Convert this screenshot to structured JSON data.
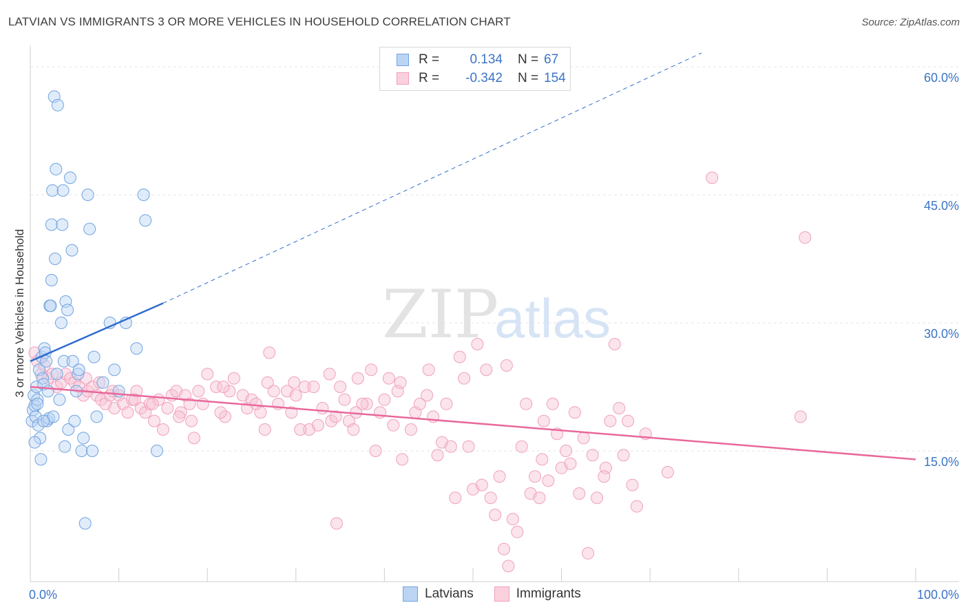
{
  "title": "LATVIAN VS IMMIGRANTS 3 OR MORE VEHICLES IN HOUSEHOLD CORRELATION CHART",
  "source": "Source: ZipAtlas.com",
  "watermark": {
    "zip": "ZIP",
    "atlas": "atlas"
  },
  "legend_box": {
    "rows": [
      {
        "r_label": "R =",
        "r_value": "0.134",
        "n_label": "N =",
        "n_value": "67"
      },
      {
        "r_label": "R =",
        "r_value": "-0.342",
        "n_label": "N =",
        "n_value": "154"
      }
    ]
  },
  "bottom_legend": {
    "items": [
      "Latvians",
      "Immigrants"
    ]
  },
  "chart_data": {
    "type": "scatter",
    "ylabel": "3 or more Vehicles in Household",
    "xlabel": "",
    "x_tick_labels": {
      "min": "0.0%",
      "max": "100.0%"
    },
    "y_tick_labels": [
      "15.0%",
      "30.0%",
      "45.0%",
      "60.0%"
    ],
    "xlim": [
      0,
      100
    ],
    "ylim": [
      0,
      60
    ],
    "grid": "horizontal dashed",
    "colors": {
      "latvians": "#6fa3e0",
      "immigrants": "#f0a0bc",
      "latvians_line": "#2e6ccf",
      "immigrants_line": "#e8689a",
      "tick_text": "#3b74c7"
    },
    "series": [
      {
        "name": "Latvians",
        "points": [
          [
            0.2,
            18.5
          ],
          [
            0.3,
            19.8
          ],
          [
            0.4,
            21.5
          ],
          [
            0.5,
            20.3
          ],
          [
            0.6,
            19.0
          ],
          [
            0.7,
            22.5
          ],
          [
            0.8,
            21.0
          ],
          [
            0.9,
            18.0
          ],
          [
            1.0,
            24.5
          ],
          [
            1.1,
            16.5
          ],
          [
            1.2,
            14.0
          ],
          [
            1.3,
            26.0
          ],
          [
            1.4,
            23.5
          ],
          [
            1.5,
            22.8
          ],
          [
            1.6,
            27.0
          ],
          [
            1.7,
            26.5
          ],
          [
            1.8,
            25.5
          ],
          [
            1.9,
            18.5
          ],
          [
            2.0,
            22.0
          ],
          [
            2.1,
            18.8
          ],
          [
            2.2,
            32.0
          ],
          [
            2.3,
            32.0
          ],
          [
            2.4,
            41.5
          ],
          [
            2.5,
            45.5
          ],
          [
            2.6,
            19.0
          ],
          [
            2.7,
            56.5
          ],
          [
            2.8,
            37.5
          ],
          [
            2.9,
            48.0
          ],
          [
            3.0,
            24.0
          ],
          [
            3.1,
            55.5
          ],
          [
            3.3,
            21.0
          ],
          [
            3.5,
            30.0
          ],
          [
            3.6,
            41.5
          ],
          [
            3.7,
            45.5
          ],
          [
            3.8,
            25.5
          ],
          [
            3.9,
            15.5
          ],
          [
            4.0,
            32.5
          ],
          [
            4.2,
            31.5
          ],
          [
            4.3,
            17.5
          ],
          [
            4.5,
            47.0
          ],
          [
            4.7,
            38.5
          ],
          [
            4.8,
            25.5
          ],
          [
            5.0,
            18.5
          ],
          [
            5.2,
            22.0
          ],
          [
            5.4,
            24.0
          ],
          [
            5.5,
            24.5
          ],
          [
            5.8,
            15.0
          ],
          [
            6.0,
            16.5
          ],
          [
            6.2,
            6.5
          ],
          [
            6.5,
            45.0
          ],
          [
            6.7,
            41.0
          ],
          [
            7.0,
            15.0
          ],
          [
            7.2,
            26.0
          ],
          [
            7.5,
            19.0
          ],
          [
            8.2,
            23.0
          ],
          [
            9.0,
            30.0
          ],
          [
            9.5,
            24.5
          ],
          [
            10.0,
            22.0
          ],
          [
            10.8,
            30.0
          ],
          [
            12.0,
            27.0
          ],
          [
            12.8,
            45.0
          ],
          [
            13.0,
            42.0
          ],
          [
            14.3,
            15.0
          ],
          [
            0.8,
            20.5
          ],
          [
            1.5,
            18.5
          ],
          [
            2.4,
            35.0
          ],
          [
            0.5,
            16.0
          ]
        ]
      },
      {
        "name": "Immigrants",
        "points": [
          [
            0.5,
            26.5
          ],
          [
            0.8,
            25.5
          ],
          [
            1.2,
            24.0
          ],
          [
            1.6,
            25.0
          ],
          [
            2.0,
            23.5
          ],
          [
            2.5,
            24.0
          ],
          [
            3.0,
            22.5
          ],
          [
            3.5,
            23.0
          ],
          [
            4.0,
            24.0
          ],
          [
            4.5,
            23.5
          ],
          [
            5.0,
            23.0
          ],
          [
            5.5,
            22.5
          ],
          [
            6.0,
            21.5
          ],
          [
            6.5,
            22.0
          ],
          [
            7.0,
            22.5
          ],
          [
            7.5,
            21.5
          ],
          [
            8.0,
            21.0
          ],
          [
            8.5,
            20.5
          ],
          [
            9.0,
            21.5
          ],
          [
            9.5,
            20.0
          ],
          [
            10.0,
            21.5
          ],
          [
            10.5,
            20.5
          ],
          [
            11.0,
            19.5
          ],
          [
            11.5,
            21.0
          ],
          [
            12.0,
            22.0
          ],
          [
            12.5,
            20.0
          ],
          [
            13.0,
            19.5
          ],
          [
            13.5,
            20.5
          ],
          [
            14.0,
            18.5
          ],
          [
            14.5,
            21.0
          ],
          [
            15.0,
            17.5
          ],
          [
            15.5,
            20.0
          ],
          [
            16.0,
            21.5
          ],
          [
            16.5,
            22.0
          ],
          [
            17.0,
            19.5
          ],
          [
            17.5,
            21.5
          ],
          [
            18.0,
            20.5
          ],
          [
            18.5,
            16.5
          ],
          [
            19.0,
            22.0
          ],
          [
            19.5,
            20.5
          ],
          [
            20.0,
            24.0
          ],
          [
            21.0,
            22.5
          ],
          [
            22.0,
            19.0
          ],
          [
            22.5,
            22.0
          ],
          [
            23.0,
            23.5
          ],
          [
            24.0,
            21.5
          ],
          [
            24.5,
            20.0
          ],
          [
            25.0,
            21.0
          ],
          [
            26.0,
            19.5
          ],
          [
            26.5,
            17.5
          ],
          [
            27.0,
            26.5
          ],
          [
            27.5,
            22.0
          ],
          [
            28.0,
            20.5
          ],
          [
            29.0,
            22.0
          ],
          [
            29.5,
            19.5
          ],
          [
            30.0,
            21.5
          ],
          [
            31.0,
            22.5
          ],
          [
            31.5,
            17.5
          ],
          [
            32.0,
            22.5
          ],
          [
            32.5,
            18.0
          ],
          [
            33.0,
            20.0
          ],
          [
            34.0,
            18.5
          ],
          [
            34.5,
            19.0
          ],
          [
            35.0,
            22.5
          ],
          [
            35.5,
            21.0
          ],
          [
            36.0,
            18.5
          ],
          [
            36.5,
            17.5
          ],
          [
            37.0,
            23.5
          ],
          [
            38.0,
            20.5
          ],
          [
            38.5,
            24.5
          ],
          [
            39.0,
            15.0
          ],
          [
            39.5,
            19.5
          ],
          [
            40.0,
            21.0
          ],
          [
            40.5,
            23.5
          ],
          [
            41.0,
            18.0
          ],
          [
            41.5,
            22.0
          ],
          [
            42.0,
            14.0
          ],
          [
            43.0,
            17.5
          ],
          [
            43.5,
            19.5
          ],
          [
            44.0,
            20.5
          ],
          [
            45.0,
            24.5
          ],
          [
            45.5,
            19.0
          ],
          [
            46.0,
            14.5
          ],
          [
            46.5,
            16.0
          ],
          [
            47.0,
            20.5
          ],
          [
            47.5,
            15.5
          ],
          [
            48.0,
            9.5
          ],
          [
            48.5,
            26.0
          ],
          [
            49.0,
            23.5
          ],
          [
            49.5,
            15.5
          ],
          [
            50.0,
            10.5
          ],
          [
            50.5,
            27.5
          ],
          [
            51.0,
            11.0
          ],
          [
            51.5,
            24.5
          ],
          [
            52.0,
            9.5
          ],
          [
            52.5,
            7.5
          ],
          [
            53.0,
            12.0
          ],
          [
            53.5,
            3.5
          ],
          [
            54.0,
            1.5
          ],
          [
            54.5,
            7.0
          ],
          [
            55.0,
            5.5
          ],
          [
            55.5,
            15.5
          ],
          [
            56.0,
            20.5
          ],
          [
            56.5,
            10.0
          ],
          [
            57.0,
            12.0
          ],
          [
            57.5,
            9.5
          ],
          [
            58.0,
            18.5
          ],
          [
            58.5,
            11.5
          ],
          [
            59.0,
            20.5
          ],
          [
            59.5,
            17.0
          ],
          [
            60.0,
            13.0
          ],
          [
            60.5,
            15.0
          ],
          [
            61.0,
            13.5
          ],
          [
            61.5,
            19.5
          ],
          [
            62.0,
            10.0
          ],
          [
            62.5,
            16.5
          ],
          [
            63.0,
            3.0
          ],
          [
            63.5,
            14.5
          ],
          [
            64.0,
            9.5
          ],
          [
            65.0,
            13.0
          ],
          [
            65.5,
            18.5
          ],
          [
            66.0,
            27.5
          ],
          [
            66.5,
            20.0
          ],
          [
            67.0,
            14.5
          ],
          [
            67.5,
            18.5
          ],
          [
            68.0,
            11.0
          ],
          [
            69.5,
            17.0
          ],
          [
            72.0,
            12.5
          ],
          [
            77.0,
            47.0
          ],
          [
            87.0,
            19.0
          ],
          [
            87.5,
            40.0
          ],
          [
            6.3,
            23.5
          ],
          [
            7.8,
            23.0
          ],
          [
            9.3,
            22.0
          ],
          [
            11.8,
            21.0
          ],
          [
            13.8,
            20.5
          ],
          [
            16.8,
            19.0
          ],
          [
            21.5,
            19.5
          ],
          [
            26.8,
            23.0
          ],
          [
            30.5,
            17.5
          ],
          [
            33.8,
            24.0
          ],
          [
            37.5,
            20.5
          ],
          [
            41.8,
            23.0
          ],
          [
            44.8,
            21.5
          ],
          [
            53.8,
            25.0
          ],
          [
            57.8,
            14.0
          ],
          [
            64.8,
            12.0
          ],
          [
            68.5,
            8.5
          ],
          [
            18.2,
            18.5
          ],
          [
            21.8,
            22.5
          ],
          [
            25.5,
            20.5
          ],
          [
            29.8,
            23.0
          ],
          [
            36.8,
            19.5
          ],
          [
            34.6,
            6.5
          ]
        ]
      }
    ],
    "trend_lines": [
      {
        "series": "Latvians",
        "x": [
          0,
          15
        ],
        "y": [
          25.5,
          32.3
        ],
        "extended_to": [
          75.8,
          60
        ]
      },
      {
        "series": "Immigrants",
        "x": [
          0,
          100
        ],
        "y": [
          22.5,
          14.0
        ]
      }
    ]
  }
}
